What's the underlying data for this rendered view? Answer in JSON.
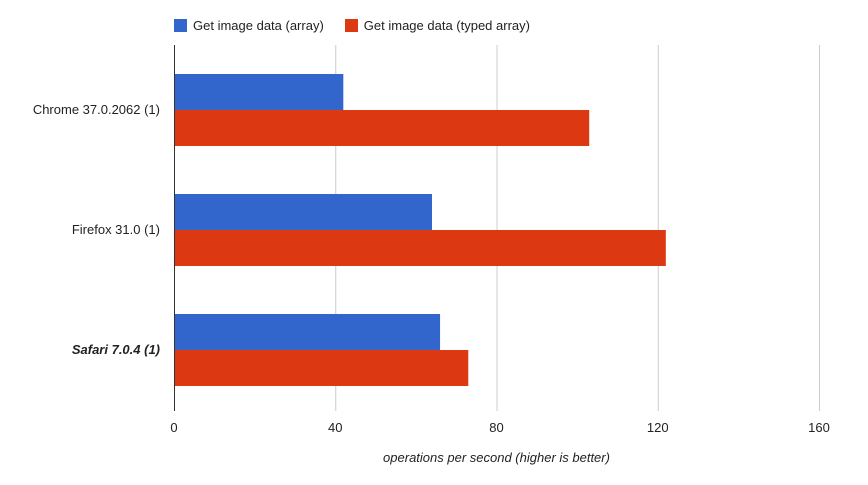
{
  "chart_data": {
    "type": "bar",
    "orientation": "horizontal",
    "categories": [
      "Chrome 37.0.2062 (1)",
      "Firefox 31.0 (1)",
      "Safari 7.0.4 (1)"
    ],
    "highlighted_category": "Safari 7.0.4 (1)",
    "series": [
      {
        "name": "Get image data (array)",
        "color": "#3366cc",
        "values": [
          42,
          64,
          66
        ]
      },
      {
        "name": "Get image data (typed array)",
        "color": "#dc3912",
        "values": [
          103,
          122,
          73
        ]
      }
    ],
    "xlim": [
      0,
      160
    ],
    "xticks": [
      0,
      40,
      80,
      120,
      160
    ],
    "xlabel": "operations per second (higher is better)",
    "ylabel": "",
    "title": "",
    "grid": true,
    "legend_position": "top"
  }
}
